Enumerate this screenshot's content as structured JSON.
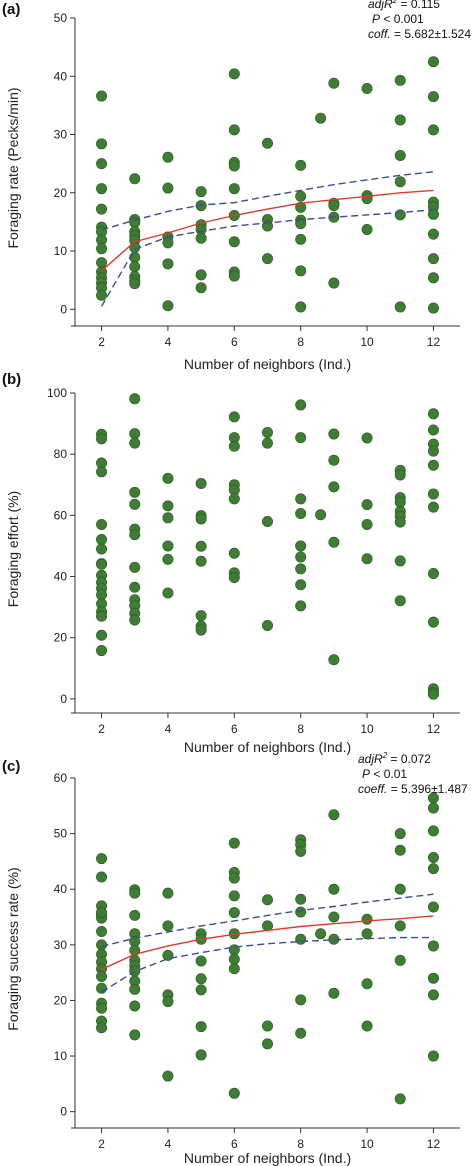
{
  "chart_data": [
    {
      "type": "scatter",
      "panel_label": "(a)",
      "ylabel": "Foraging rate (Pecks/min)",
      "xlabel": "Number of neighbors (Ind.)",
      "xlim": [
        1.2,
        12.8
      ],
      "ylim": [
        -1.5,
        50
      ],
      "xticks": [
        2,
        4,
        6,
        8,
        10,
        12
      ],
      "yticks": [
        0,
        10,
        20,
        30,
        40,
        50
      ],
      "grid": false,
      "stats": {
        "adjR2_label": "adjR",
        "adjR2_value": "= 0.115",
        "p_label": "P",
        "p_value": "< 0.001",
        "coff_label": "coff.",
        "coff_value": "= 5.682±1.524"
      },
      "x": [
        2,
        2,
        2,
        2,
        2,
        2,
        2,
        2,
        2,
        2,
        2,
        2,
        2,
        2,
        2,
        3,
        3,
        3,
        3,
        3,
        3,
        3,
        3,
        3,
        3,
        3,
        3,
        4,
        4,
        4,
        4,
        4,
        4,
        5,
        5,
        5,
        5,
        5,
        5,
        5,
        6,
        6,
        6,
        6,
        6,
        6,
        6,
        6,
        6,
        7,
        7,
        7,
        7,
        8,
        8,
        8,
        8,
        8,
        8,
        8,
        8,
        8.6,
        9,
        9,
        9,
        9,
        9,
        10,
        10,
        10,
        10,
        11,
        11,
        11,
        11,
        11,
        11,
        12,
        12,
        12,
        12,
        12,
        12,
        12,
        12,
        12,
        12
      ],
      "y": [
        36.6,
        28.4,
        25.0,
        20.7,
        17.2,
        14.1,
        13.3,
        11.9,
        10.4,
        8.0,
        6.4,
        5.4,
        4.5,
        3.7,
        2.4,
        22.4,
        15.4,
        14.9,
        13.3,
        12.6,
        11.8,
        10.6,
        8.9,
        7.3,
        5.6,
        4.9,
        4.4,
        26.1,
        20.8,
        12.4,
        11.4,
        7.8,
        0.6,
        20.2,
        17.8,
        14.5,
        13.7,
        12.2,
        5.9,
        3.7,
        40.4,
        30.8,
        25.2,
        24.6,
        20.7,
        16.1,
        11.6,
        6.4,
        5.7,
        28.5,
        15.4,
        14.3,
        8.7,
        24.7,
        19.4,
        17.5,
        15.3,
        14.7,
        12.0,
        6.6,
        0.4,
        32.8,
        38.8,
        18.2,
        17.8,
        15.8,
        4.5,
        37.9,
        19.5,
        19.0,
        13.7,
        39.3,
        32.5,
        26.4,
        21.9,
        16.2,
        0.4,
        42.5,
        36.5,
        30.8,
        18.4,
        17.6,
        16.3,
        12.9,
        8.7,
        5.4,
        0.2
      ],
      "fit": {
        "name": "fit",
        "color": "#e03a2e",
        "x": [
          2,
          3,
          4,
          5,
          6,
          7,
          8,
          9,
          10,
          11,
          12
        ],
        "y": [
          6.6,
          11.6,
          13.1,
          14.8,
          16.1,
          17.2,
          18.2,
          18.8,
          19.4,
          20.0,
          20.4
        ]
      },
      "ci_upper": {
        "color": "#3f4a9c",
        "x": [
          2,
          3,
          4,
          5,
          6,
          7,
          8,
          9,
          10,
          11,
          12
        ],
        "y": [
          13.6,
          15.3,
          16.8,
          17.9,
          18.3,
          19.4,
          20.4,
          21.4,
          22.2,
          23.0,
          23.6
        ]
      },
      "ci_lower": {
        "color": "#3f4a9c",
        "x": [
          2,
          3,
          4,
          5,
          6,
          7,
          8,
          9,
          10,
          11,
          12
        ],
        "y": [
          0.5,
          10.3,
          12.4,
          13.4,
          14.3,
          14.8,
          15.4,
          15.8,
          16.2,
          16.6,
          17.1
        ]
      }
    },
    {
      "type": "scatter",
      "panel_label": "(b)",
      "ylabel": "Foraging effort (%)",
      "xlabel": "Number of neighbors (Ind.)",
      "xlim": [
        1.2,
        12.8
      ],
      "ylim": [
        -2,
        100
      ],
      "xticks": [
        2,
        4,
        6,
        8,
        10,
        12
      ],
      "yticks": [
        0,
        20,
        40,
        60,
        80,
        100
      ],
      "grid": false,
      "x": [
        2,
        2,
        2,
        2,
        2,
        2,
        2,
        2,
        2,
        2,
        2,
        2,
        2,
        2,
        2,
        2,
        2,
        2,
        3,
        3,
        3,
        3,
        3,
        3,
        3,
        3,
        3,
        3,
        3,
        3,
        3,
        4,
        4,
        4,
        4,
        4,
        4,
        5,
        5,
        5,
        5,
        5,
        5,
        5,
        5,
        6,
        6,
        6,
        6,
        6,
        6,
        6,
        6,
        6,
        7,
        7,
        7,
        7,
        8,
        8,
        8,
        8,
        8,
        8,
        8,
        8,
        8,
        8.6,
        9,
        9,
        9,
        9,
        9,
        10,
        10,
        10,
        10,
        11,
        11,
        11,
        11,
        11,
        11,
        11,
        11,
        11,
        12,
        12,
        12,
        12,
        12,
        12,
        12,
        12,
        12,
        12,
        12,
        12
      ],
      "y": [
        86.5,
        77.1,
        74.2,
        57.0,
        52.1,
        49.0,
        44.2,
        40.4,
        38.1,
        36.1,
        34.0,
        31.1,
        28.5,
        27.0,
        20.8,
        15.8,
        85.0,
        44.0,
        98.1,
        86.7,
        83.6,
        67.5,
        63.6,
        55.5,
        53.7,
        43.0,
        36.5,
        32.4,
        30.4,
        28.0,
        25.8,
        72.1,
        63.1,
        59.2,
        50.0,
        45.6,
        34.6,
        70.4,
        59.9,
        58.8,
        49.9,
        45.0,
        27.2,
        23.8,
        22.5,
        92.2,
        85.4,
        82.6,
        70.0,
        68.3,
        65.4,
        47.6,
        41.2,
        39.7,
        87.1,
        83.6,
        58.0,
        24.0,
        96.1,
        85.4,
        65.4,
        60.6,
        50.0,
        46.4,
        42.5,
        37.3,
        30.4,
        60.2,
        86.6,
        78.0,
        69.3,
        51.2,
        12.8,
        85.3,
        63.5,
        57.0,
        45.8,
        74.7,
        73.2,
        65.8,
        64.3,
        61.3,
        59.7,
        57.8,
        45.1,
        32.1,
        93.2,
        87.9,
        83.3,
        81.0,
        76.4,
        67.0,
        62.7,
        41.0,
        25.1,
        3.3,
        2.0,
        1.5
      ]
    },
    {
      "type": "scatter",
      "panel_label": "(c)",
      "ylabel": "Foraging success rate (%)",
      "xlabel": "Number of neighbors (Ind.)",
      "xlim": [
        1.2,
        12.8
      ],
      "ylim": [
        -1.5,
        60
      ],
      "xticks": [
        2,
        4,
        6,
        8,
        10,
        12
      ],
      "yticks": [
        0,
        10,
        20,
        30,
        40,
        50,
        60
      ],
      "grid": false,
      "stats": {
        "adjR2_label": "adjR",
        "adjR2_value": "= 0.072",
        "p_label": "P",
        "p_value": "< 0.01",
        "coff_label": "coeff.",
        "coff_value": "= 5.396±1.487"
      },
      "x": [
        2,
        2,
        2,
        2,
        2,
        2,
        2,
        2,
        2,
        2,
        2,
        2,
        2,
        2,
        2,
        2,
        2,
        3,
        3,
        3,
        3,
        3,
        3,
        3,
        3,
        3,
        3,
        3,
        3,
        3,
        4,
        4,
        4,
        4,
        4,
        4,
        5,
        5,
        5,
        5,
        5,
        5,
        5,
        6,
        6,
        6,
        6,
        6,
        6,
        6,
        6,
        6,
        6,
        7,
        7,
        7,
        7,
        8,
        8,
        8,
        8,
        8,
        8,
        8,
        8,
        8.6,
        9,
        9,
        9,
        9,
        9,
        10,
        10,
        10,
        10,
        11,
        11,
        11,
        11,
        11,
        11,
        12,
        12,
        12,
        12,
        12,
        12,
        12,
        12,
        12,
        12
      ],
      "y": [
        45.5,
        42.2,
        37.0,
        35.4,
        34.8,
        32.4,
        30.0,
        28.3,
        26.9,
        25.7,
        24.3,
        22.2,
        19.5,
        18.6,
        16.3,
        15.1,
        35.8,
        39.9,
        39.3,
        35.3,
        32.0,
        30.6,
        29.0,
        27.2,
        26.2,
        25.3,
        23.5,
        22.0,
        19.0,
        13.8,
        39.3,
        33.4,
        28.1,
        21.0,
        19.8,
        6.4,
        32.0,
        31.0,
        27.1,
        23.9,
        21.9,
        15.3,
        10.2,
        48.3,
        43.0,
        42.0,
        38.8,
        35.8,
        32.0,
        29.1,
        27.4,
        25.7,
        3.3,
        38.1,
        33.4,
        15.4,
        12.2,
        48.9,
        48.0,
        46.8,
        38.2,
        35.9,
        31.0,
        20.1,
        14.1,
        32.0,
        53.4,
        40.0,
        35.0,
        31.0,
        21.3,
        34.6,
        32.0,
        23.0,
        15.4,
        50.0,
        47.0,
        40.0,
        33.4,
        27.2,
        2.3,
        56.4,
        54.6,
        50.5,
        45.7,
        43.7,
        36.8,
        29.8,
        24.0,
        21.0,
        10.0
      ],
      "fit": {
        "name": "fit",
        "color": "#e03a2e",
        "x": [
          2,
          3,
          4,
          5,
          6,
          7,
          8,
          9,
          10,
          11,
          12
        ],
        "y": [
          25.6,
          28.3,
          29.8,
          31.0,
          31.9,
          32.6,
          33.3,
          33.8,
          34.3,
          34.7,
          35.2
        ]
      },
      "ci_upper": {
        "color": "#3f4a9c",
        "x": [
          2,
          3,
          4,
          5,
          6,
          7,
          8,
          9,
          10,
          11,
          12
        ],
        "y": [
          29.7,
          31.2,
          32.3,
          33.4,
          34.3,
          35.3,
          36.2,
          36.9,
          37.7,
          38.4,
          39.1
        ]
      },
      "ci_lower": {
        "color": "#3f4a9c",
        "x": [
          2,
          3,
          4,
          5,
          6,
          7,
          8,
          9,
          10,
          11,
          12
        ],
        "y": [
          21.5,
          25.2,
          27.5,
          28.6,
          29.6,
          30.2,
          30.6,
          30.9,
          31.1,
          31.3,
          31.3
        ]
      }
    }
  ],
  "colors": {
    "point_fill": "#3e7d33",
    "point_stroke": "#2b5a24",
    "fit_line": "#e03a2e",
    "ci_line": "#3f4a9c",
    "axis": "#333333"
  }
}
